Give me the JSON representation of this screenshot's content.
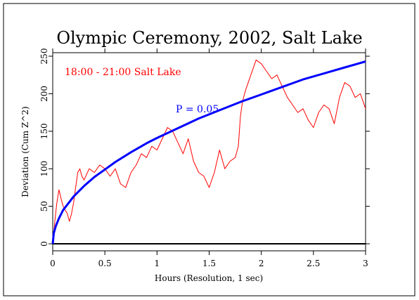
{
  "chart_data": {
    "type": "line",
    "title": "Olympic Ceremony, 2002, Salt Lake",
    "xlabel": "Hours (Resolution, 1 sec)",
    "ylabel": "Deviation (Cum Z^2)",
    "xlim": [
      0,
      3
    ],
    "ylim": [
      0,
      260
    ],
    "x_ticks": [
      0,
      0.5,
      1,
      1.5,
      2,
      2.5,
      3
    ],
    "x_tick_labels": [
      "0",
      "0.5",
      "1",
      "1.5",
      "2",
      "2.5",
      "3"
    ],
    "y_ticks": [
      0,
      50,
      100,
      150,
      200,
      250
    ],
    "y_tick_labels": [
      "0",
      "50",
      "100",
      "150",
      "200",
      "250"
    ],
    "grid": false,
    "series": [
      {
        "name": "18:00 - 21:00 Salt Lake",
        "color": "#ff0000",
        "x": [
          0,
          0.02,
          0.04,
          0.06,
          0.08,
          0.1,
          0.12,
          0.14,
          0.16,
          0.18,
          0.2,
          0.22,
          0.24,
          0.26,
          0.28,
          0.3,
          0.35,
          0.4,
          0.45,
          0.5,
          0.55,
          0.6,
          0.65,
          0.7,
          0.75,
          0.8,
          0.85,
          0.9,
          0.95,
          1.0,
          1.05,
          1.1,
          1.15,
          1.2,
          1.25,
          1.3,
          1.35,
          1.4,
          1.45,
          1.5,
          1.55,
          1.6,
          1.65,
          1.7,
          1.75,
          1.78,
          1.8,
          1.82,
          1.85,
          1.9,
          1.95,
          2.0,
          2.05,
          2.1,
          2.15,
          2.2,
          2.25,
          2.3,
          2.35,
          2.4,
          2.45,
          2.5,
          2.55,
          2.6,
          2.65,
          2.7,
          2.75,
          2.8,
          2.85,
          2.9,
          2.95,
          3.0
        ],
        "values": [
          2,
          30,
          55,
          72,
          60,
          50,
          45,
          40,
          30,
          40,
          55,
          75,
          95,
          100,
          90,
          85,
          100,
          95,
          105,
          100,
          90,
          100,
          80,
          75,
          95,
          105,
          120,
          115,
          130,
          125,
          140,
          155,
          150,
          135,
          120,
          140,
          110,
          95,
          90,
          75,
          95,
          125,
          100,
          110,
          115,
          130,
          170,
          190,
          205,
          225,
          245,
          240,
          230,
          220,
          225,
          210,
          195,
          185,
          175,
          180,
          165,
          155,
          175,
          185,
          180,
          160,
          195,
          215,
          210,
          195,
          200,
          180
        ]
      },
      {
        "name": "P = 0.05",
        "color": "#0000ff",
        "x": [
          0,
          0.01,
          0.03,
          0.06,
          0.1,
          0.15,
          0.2,
          0.3,
          0.4,
          0.5,
          0.6,
          0.75,
          0.9,
          1.0,
          1.2,
          1.4,
          1.6,
          1.8,
          2.0,
          2.2,
          2.4,
          2.6,
          2.8,
          3.0
        ],
        "values": [
          0,
          14,
          24,
          34,
          45,
          54,
          63,
          77,
          89,
          99,
          109,
          122,
          134,
          141,
          154,
          167,
          178,
          189,
          199,
          209,
          219,
          227,
          235,
          243
        ]
      }
    ]
  }
}
